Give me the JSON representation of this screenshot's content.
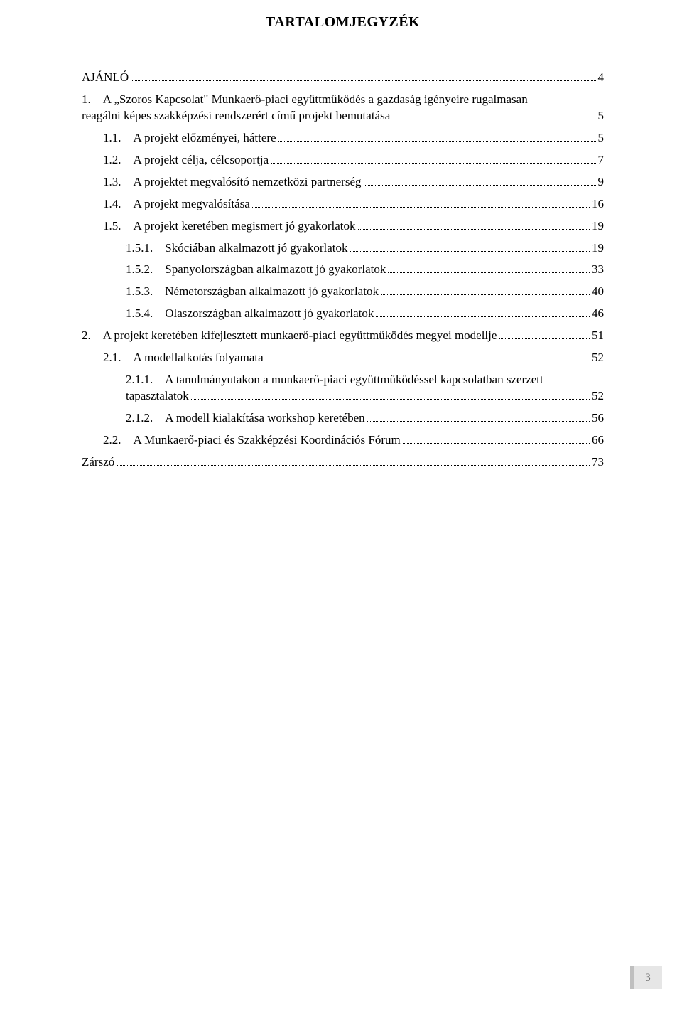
{
  "title": "TARTALOMJEGYZÉK",
  "entries": [
    {
      "indent": 0,
      "num": "",
      "label": "AJÁNLÓ",
      "page": "4",
      "wrap": false
    },
    {
      "indent": 0,
      "num": "1.",
      "lead": "1.    A „Szoros Kapcsolat\" Munkaerő-piaci együttműködés a gazdaság igényeire rugalmasan",
      "tail": "reagálni képes szakképzési rendszerért című projekt bemutatása",
      "page": "5",
      "wrap": true
    },
    {
      "indent": 1,
      "num": "1.1.",
      "label": "A projekt előzményei, háttere",
      "page": "5",
      "wrap": false
    },
    {
      "indent": 1,
      "num": "1.2.",
      "label": "A projekt célja, célcsoportja",
      "page": "7",
      "wrap": false
    },
    {
      "indent": 1,
      "num": "1.3.",
      "label": "A projektet megvalósító nemzetközi partnerség",
      "page": "9",
      "wrap": false
    },
    {
      "indent": 1,
      "num": "1.4.",
      "label": "A projekt megvalósítása",
      "page": "16",
      "wrap": false
    },
    {
      "indent": 1,
      "num": "1.5.",
      "label": "A projekt keretében megismert jó gyakorlatok",
      "page": "19",
      "wrap": false
    },
    {
      "indent": 2,
      "num": "1.5.1.",
      "label": "Skóciában alkalmazott jó gyakorlatok",
      "page": "19",
      "wrap": false
    },
    {
      "indent": 2,
      "num": "1.5.2.",
      "label": "Spanyolországban alkalmazott jó gyakorlatok",
      "page": "33",
      "wrap": false
    },
    {
      "indent": 2,
      "num": "1.5.3.",
      "label": "Németországban alkalmazott jó gyakorlatok",
      "page": "40",
      "wrap": false
    },
    {
      "indent": 2,
      "num": "1.5.4.",
      "label": "Olaszországban alkalmazott jó gyakorlatok",
      "page": "46",
      "wrap": false
    },
    {
      "indent": 0,
      "num": "2.",
      "label": "A projekt keretében kifejlesztett munkaerő-piaci együttműködés megyei modellje",
      "page": "51",
      "wrap": false
    },
    {
      "indent": 1,
      "num": "2.1.",
      "label": "A modellalkotás folyamata",
      "page": "52",
      "wrap": false
    },
    {
      "indent": 3,
      "num": "2.1.1.",
      "lead": "2.1.1.    A tanulmányutakon a munkaerő-piaci együttműködéssel kapcsolatban szerzett",
      "tail": "tapasztalatok",
      "page": "52",
      "wrap": true
    },
    {
      "indent": 3,
      "num": "2.1.2.",
      "label": "A modell kialakítása workshop keretében",
      "page": "56",
      "wrap": false
    },
    {
      "indent": 1,
      "num": "2.2.",
      "label": "A Munkaerő-piaci és Szakképzési Koordinációs Fórum",
      "page": "66",
      "wrap": false
    },
    {
      "indent": 0,
      "num": "",
      "label": "Zárszó",
      "page": "73",
      "wrap": false
    }
  ],
  "pageNumber": "3",
  "colors": {
    "text": "#000000",
    "background": "#ffffff",
    "badgeBg": "#e6e6e6",
    "badgeBorder": "#bfbfbf",
    "badgeText": "#6a6a6a"
  },
  "typography": {
    "titleFontSize": 20,
    "bodyFontSize": 17,
    "fontFamily": "Times New Roman"
  }
}
